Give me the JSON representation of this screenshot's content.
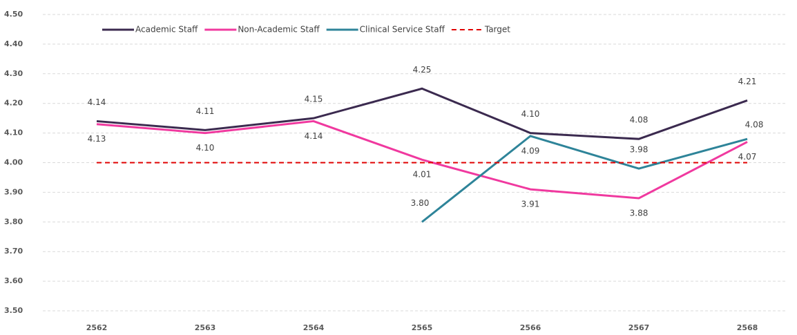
{
  "chart_data": {
    "type": "line",
    "categories": [
      "2562",
      "2563",
      "2564",
      "2565",
      "2566",
      "2567",
      "2568"
    ],
    "series": [
      {
        "name": "Academic Staff",
        "color": "#3b2a4f",
        "values": [
          4.14,
          4.11,
          4.15,
          4.25,
          4.1,
          4.08,
          4.21
        ],
        "value_labels": [
          "4.14",
          "4.11",
          "4.15",
          "4.25",
          "4.10",
          "4.08",
          "4.21"
        ]
      },
      {
        "name": "Non-Academic Staff",
        "color": "#f0399f",
        "values": [
          4.13,
          4.1,
          4.14,
          4.01,
          3.91,
          3.88,
          4.07
        ],
        "value_labels": [
          "4.13",
          "4.10",
          "4.14",
          "4.01",
          "3.91",
          "3.88",
          "4.07"
        ]
      },
      {
        "name": "Clinical Service Staff",
        "color": "#2e8499",
        "values": [
          null,
          null,
          null,
          3.8,
          4.09,
          3.98,
          4.08
        ],
        "value_labels": [
          null,
          null,
          null,
          "3.80",
          "4.09",
          "3.98",
          "4.08"
        ]
      },
      {
        "name": "Target",
        "color": "#e00000",
        "dashed": true,
        "values": [
          4.0,
          4.0,
          4.0,
          4.0,
          4.0,
          4.0,
          4.0
        ]
      }
    ],
    "ylim": [
      3.5,
      4.5
    ],
    "yticks": [
      {
        "value": 3.5,
        "label": "3.50"
      },
      {
        "value": 3.6,
        "label": "3.60"
      },
      {
        "value": 3.7,
        "label": "3.70"
      },
      {
        "value": 3.8,
        "label": "3.80"
      },
      {
        "value": 3.9,
        "label": "3.90"
      },
      {
        "value": 4.0,
        "label": "4.00"
      },
      {
        "value": 4.1,
        "label": "4.10"
      },
      {
        "value": 4.2,
        "label": "4.20"
      },
      {
        "value": 4.3,
        "label": "4.30"
      },
      {
        "value": 4.4,
        "label": "4.40"
      },
      {
        "value": 4.5,
        "label": "4.50"
      }
    ],
    "grid": true
  }
}
